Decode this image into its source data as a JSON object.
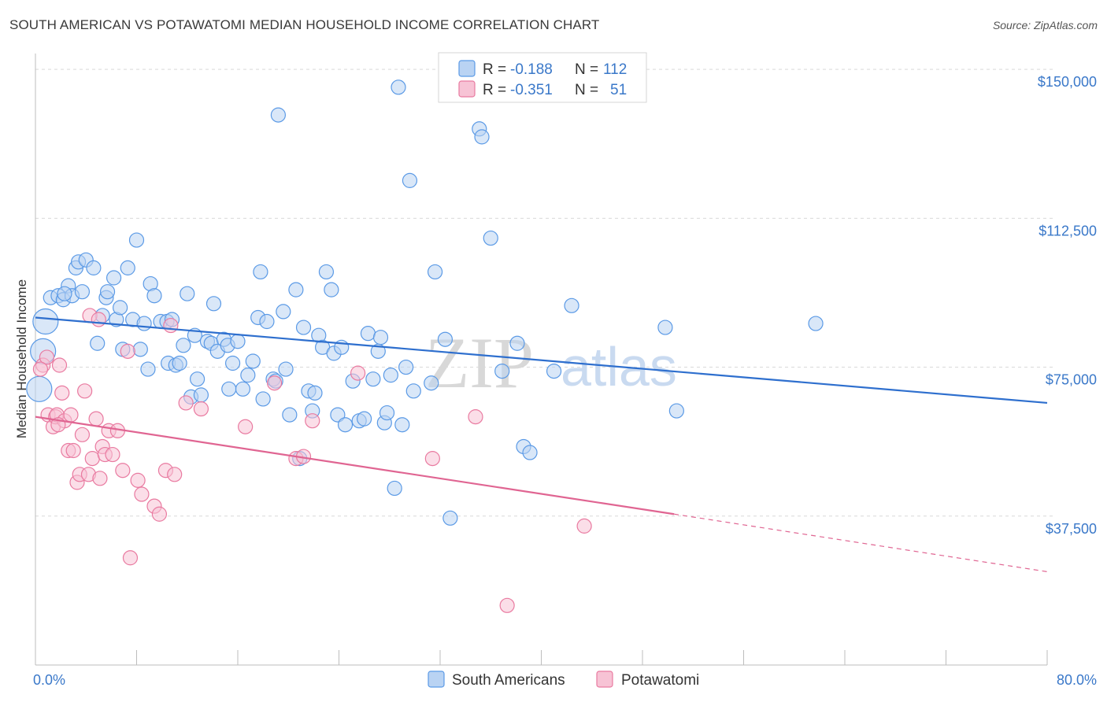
{
  "title": "SOUTH AMERICAN VS POTAWATOMI MEDIAN HOUSEHOLD INCOME CORRELATION CHART",
  "source": "Source: ZipAtlas.com",
  "watermark": {
    "zip": "ZIP",
    "atlas": "atlas"
  },
  "colors": {
    "blue": "#5b9ae6",
    "blue_fill": "#b9d3f3",
    "pink": "#e97aa0",
    "pink_fill": "#f7c3d5",
    "blue_line": "#2e6fce",
    "pink_line": "#e06592",
    "axis_text": "#3a78c9"
  },
  "legend_top": [
    {
      "r_label": "R = ",
      "r_value": "-0.188",
      "n_label": "N = ",
      "n_value": "112",
      "series": "blue"
    },
    {
      "r_label": "R = ",
      "r_value": "-0.351",
      "n_label": "N = ",
      "n_value": "51",
      "series": "pink"
    }
  ],
  "legend_bottom": [
    {
      "label": "South Americans",
      "series": "blue"
    },
    {
      "label": "Potawatomi",
      "series": "pink"
    }
  ],
  "chart_data": {
    "type": "scatter",
    "title": "SOUTH AMERICAN VS POTAWATOMI MEDIAN HOUSEHOLD INCOME CORRELATION CHART",
    "xlabel": "",
    "ylabel": "Median Household Income",
    "xlim": [
      0,
      80
    ],
    "ylim": [
      0,
      152000
    ],
    "x_tick_labels": [
      "0.0%",
      "80.0%"
    ],
    "y_ticks": [
      37500,
      75000,
      112500,
      150000
    ],
    "y_tick_labels": [
      "$37,500",
      "$75,000",
      "$112,500",
      "$150,000"
    ],
    "grid": "horizontal dashed",
    "legend": "top-center",
    "series": [
      {
        "name": "South Americans",
        "trend": {
          "x": [
            0,
            80
          ],
          "y": [
            87500,
            66000
          ]
        },
        "points": [
          [
            1.2,
            92500
          ],
          [
            1.8,
            93000
          ],
          [
            2.2,
            92000
          ],
          [
            2.6,
            95500
          ],
          [
            2.9,
            93000
          ],
          [
            3.2,
            100000
          ],
          [
            3.4,
            101500
          ],
          [
            3.7,
            94000
          ],
          [
            4.0,
            102000
          ],
          [
            4.6,
            100000
          ],
          [
            4.9,
            81000
          ],
          [
            5.3,
            88000
          ],
          [
            5.6,
            92500
          ],
          [
            5.7,
            94000
          ],
          [
            6.2,
            97500
          ],
          [
            6.4,
            87000
          ],
          [
            6.7,
            90000
          ],
          [
            6.9,
            79500
          ],
          [
            7.3,
            100000
          ],
          [
            7.7,
            87000
          ],
          [
            8.0,
            107000
          ],
          [
            8.3,
            79500
          ],
          [
            8.6,
            86000
          ],
          [
            8.9,
            74500
          ],
          [
            9.1,
            96000
          ],
          [
            9.4,
            93000
          ],
          [
            9.9,
            86500
          ],
          [
            10.4,
            86500
          ],
          [
            10.5,
            76000
          ],
          [
            10.8,
            87000
          ],
          [
            11.1,
            75500
          ],
          [
            11.4,
            76000
          ],
          [
            11.7,
            80500
          ],
          [
            12.0,
            93500
          ],
          [
            12.3,
            67500
          ],
          [
            12.6,
            83000
          ],
          [
            12.8,
            72000
          ],
          [
            13.1,
            68000
          ],
          [
            13.6,
            81500
          ],
          [
            13.9,
            81000
          ],
          [
            14.1,
            91000
          ],
          [
            14.4,
            79000
          ],
          [
            14.9,
            82000
          ],
          [
            15.2,
            80500
          ],
          [
            15.3,
            69500
          ],
          [
            15.6,
            76000
          ],
          [
            16.0,
            81500
          ],
          [
            16.4,
            69500
          ],
          [
            16.8,
            73000
          ],
          [
            17.2,
            76500
          ],
          [
            17.6,
            87500
          ],
          [
            17.8,
            99000
          ],
          [
            18.0,
            67000
          ],
          [
            18.3,
            86500
          ],
          [
            18.8,
            72000
          ],
          [
            19.0,
            71500
          ],
          [
            19.2,
            138500
          ],
          [
            19.6,
            89000
          ],
          [
            19.8,
            74500
          ],
          [
            20.1,
            63000
          ],
          [
            20.6,
            94500
          ],
          [
            20.9,
            52000
          ],
          [
            21.2,
            85000
          ],
          [
            21.6,
            69000
          ],
          [
            21.9,
            64000
          ],
          [
            22.1,
            68500
          ],
          [
            22.4,
            83000
          ],
          [
            22.7,
            80000
          ],
          [
            23.0,
            99000
          ],
          [
            23.4,
            94500
          ],
          [
            23.6,
            78500
          ],
          [
            23.9,
            63000
          ],
          [
            24.2,
            80000
          ],
          [
            24.5,
            60500
          ],
          [
            25.1,
            71500
          ],
          [
            25.6,
            61500
          ],
          [
            26.0,
            62000
          ],
          [
            26.3,
            83500
          ],
          [
            26.7,
            72000
          ],
          [
            27.1,
            79000
          ],
          [
            27.3,
            82500
          ],
          [
            27.6,
            61000
          ],
          [
            27.8,
            63500
          ],
          [
            28.1,
            73000
          ],
          [
            28.4,
            44500
          ],
          [
            28.7,
            145500
          ],
          [
            29.0,
            60500
          ],
          [
            29.3,
            75000
          ],
          [
            29.6,
            122000
          ],
          [
            29.9,
            69000
          ],
          [
            31.3,
            71000
          ],
          [
            31.6,
            99000
          ],
          [
            32.4,
            82000
          ],
          [
            32.8,
            37000
          ],
          [
            35.1,
            135000
          ],
          [
            35.3,
            133000
          ],
          [
            36.0,
            107500
          ],
          [
            36.9,
            74000
          ],
          [
            38.1,
            81000
          ],
          [
            38.6,
            55000
          ],
          [
            39.1,
            53500
          ],
          [
            41.0,
            74000
          ],
          [
            42.4,
            90500
          ],
          [
            49.8,
            85000
          ],
          [
            50.7,
            64000
          ],
          [
            61.7,
            86000
          ],
          [
            0.8,
            86500
          ],
          [
            0.6,
            79000
          ],
          [
            0.3,
            69500
          ],
          [
            2.3,
            93500
          ]
        ]
      },
      {
        "name": "Potawatomi",
        "trend": {
          "x": [
            0,
            50.5
          ],
          "y": [
            62500,
            38000
          ]
        },
        "trend_extrapolated": {
          "x": [
            50.5,
            80
          ],
          "y": [
            38000,
            23500
          ]
        },
        "points": [
          [
            0.6,
            75500
          ],
          [
            0.9,
            77500
          ],
          [
            1.0,
            63000
          ],
          [
            1.4,
            60000
          ],
          [
            1.6,
            62500
          ],
          [
            1.7,
            63000
          ],
          [
            1.9,
            75500
          ],
          [
            2.1,
            68500
          ],
          [
            2.3,
            61500
          ],
          [
            2.6,
            54000
          ],
          [
            2.8,
            63000
          ],
          [
            3.0,
            54000
          ],
          [
            3.3,
            46000
          ],
          [
            3.5,
            48000
          ],
          [
            3.7,
            58000
          ],
          [
            3.9,
            69000
          ],
          [
            4.2,
            48000
          ],
          [
            4.3,
            88000
          ],
          [
            4.5,
            52000
          ],
          [
            4.8,
            62000
          ],
          [
            5.0,
            87000
          ],
          [
            5.1,
            47000
          ],
          [
            5.3,
            55000
          ],
          [
            5.5,
            53000
          ],
          [
            5.8,
            59000
          ],
          [
            6.1,
            53000
          ],
          [
            6.5,
            59000
          ],
          [
            6.9,
            49000
          ],
          [
            7.3,
            79000
          ],
          [
            7.5,
            27000
          ],
          [
            8.1,
            46500
          ],
          [
            8.4,
            43000
          ],
          [
            9.4,
            40000
          ],
          [
            9.8,
            38000
          ],
          [
            10.3,
            49000
          ],
          [
            10.7,
            85500
          ],
          [
            11.0,
            48000
          ],
          [
            11.9,
            66000
          ],
          [
            13.1,
            64500
          ],
          [
            16.6,
            60000
          ],
          [
            18.9,
            71000
          ],
          [
            20.6,
            52000
          ],
          [
            21.2,
            52500
          ],
          [
            21.9,
            61500
          ],
          [
            25.5,
            73500
          ],
          [
            31.4,
            52000
          ],
          [
            34.8,
            62500
          ],
          [
            37.3,
            15000
          ],
          [
            43.4,
            35000
          ],
          [
            1.8,
            60500
          ],
          [
            0.4,
            74500
          ]
        ]
      }
    ]
  }
}
